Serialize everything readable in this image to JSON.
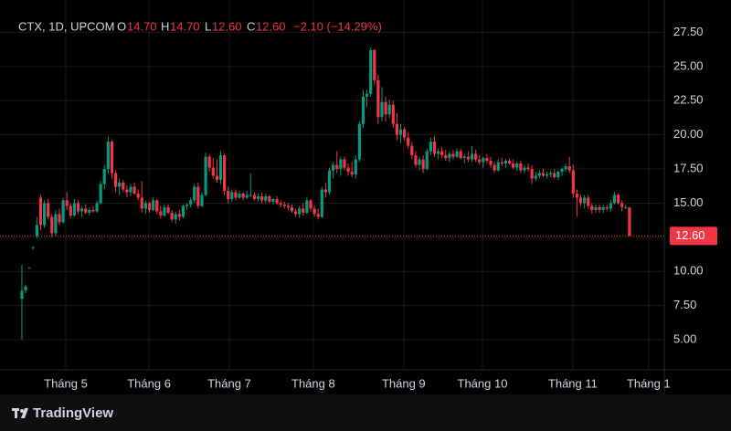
{
  "header": {
    "symbol": "CTX, 1D, UPCOM",
    "open_label": "O",
    "open": "14.70",
    "high_label": "H",
    "high": "14.70",
    "low_label": "L",
    "low": "12.60",
    "close_label": "C",
    "close": "12.60",
    "change": "−2.10 (−14.29%)"
  },
  "footer": {
    "brand": "TradingView"
  },
  "chart_data": {
    "type": "candlestick",
    "up_color": "#089981",
    "down_color": "#f23645",
    "grid": true,
    "ylim": [
      2.8,
      29.2
    ],
    "yticks": [
      {
        "value": 5,
        "label": "5.00"
      },
      {
        "value": 7.5,
        "label": "7.50"
      },
      {
        "value": 10,
        "label": "10.00"
      },
      {
        "value": 12.5,
        "label": "12.50"
      },
      {
        "value": 15,
        "label": "15.00"
      },
      {
        "value": 17.5,
        "label": "17.50"
      },
      {
        "value": 20,
        "label": "20.00"
      },
      {
        "value": 22.5,
        "label": "22.50"
      },
      {
        "value": 25,
        "label": "25.00"
      },
      {
        "value": 27.5,
        "label": "27.50"
      }
    ],
    "xlim": [
      -3.4,
      170.8
    ],
    "xticks": [
      {
        "value": 11.7,
        "label": "Tháng 5"
      },
      {
        "value": 33.9,
        "label": "Tháng 6"
      },
      {
        "value": 55.3,
        "label": "Tháng 7"
      },
      {
        "value": 77.7,
        "label": "Tháng 8"
      },
      {
        "value": 101.8,
        "label": "Tháng 9"
      },
      {
        "value": 122.8,
        "label": "Tháng 10"
      },
      {
        "value": 146.9,
        "label": "Tháng 11"
      },
      {
        "value": 167.1,
        "label": "Tháng 1"
      }
    ],
    "last_price": {
      "value": 12.6,
      "label": "12.60"
    },
    "candles": [
      [
        8.0,
        10.5,
        5.0,
        8.6
      ],
      [
        8.6,
        9.0,
        8.4,
        8.9
      ],
      [
        10.3,
        10.3,
        10.3,
        10.3
      ],
      [
        11.8,
        11.8,
        11.6,
        11.8
      ],
      [
        12.6,
        14.0,
        12.4,
        13.4
      ],
      [
        15.4,
        15.6,
        13.0,
        13.4
      ],
      [
        13.4,
        15.2,
        13.2,
        15.0
      ],
      [
        15.0,
        15.3,
        13.8,
        14.0
      ],
      [
        14.0,
        14.2,
        12.5,
        12.8
      ],
      [
        12.8,
        14.5,
        12.6,
        14.2
      ],
      [
        14.2,
        14.6,
        13.4,
        13.6
      ],
      [
        13.6,
        15.4,
        13.5,
        15.2
      ],
      [
        15.2,
        15.8,
        14.5,
        14.8
      ],
      [
        14.8,
        15.0,
        13.9,
        14.1
      ],
      [
        14.1,
        15.3,
        14.0,
        15.0
      ],
      [
        15.0,
        15.2,
        14.2,
        14.4
      ],
      [
        14.4,
        14.8,
        14.0,
        14.6
      ],
      [
        14.6,
        14.9,
        14.2,
        14.3
      ],
      [
        14.3,
        14.7,
        14.1,
        14.5
      ],
      [
        14.5,
        14.8,
        14.3,
        14.4
      ],
      [
        14.4,
        15.2,
        14.3,
        15.0
      ],
      [
        15.0,
        16.6,
        14.9,
        16.4
      ],
      [
        16.4,
        17.8,
        16.0,
        17.5
      ],
      [
        17.5,
        19.9,
        17.2,
        19.5
      ],
      [
        19.5,
        19.6,
        16.8,
        17.2
      ],
      [
        17.2,
        17.4,
        15.8,
        16.2
      ],
      [
        16.2,
        16.8,
        15.6,
        16.5
      ],
      [
        16.5,
        16.7,
        15.8,
        16.0
      ],
      [
        16.0,
        16.3,
        15.4,
        15.8
      ],
      [
        15.8,
        16.4,
        15.5,
        16.2
      ],
      [
        16.2,
        16.5,
        15.6,
        15.7
      ],
      [
        15.7,
        16.0,
        15.2,
        15.4
      ],
      [
        15.4,
        16.6,
        14.3,
        14.6
      ],
      [
        14.6,
        15.2,
        14.2,
        15.0
      ],
      [
        15.0,
        15.1,
        14.3,
        14.5
      ],
      [
        14.5,
        15.4,
        14.4,
        15.2
      ],
      [
        15.2,
        15.3,
        14.2,
        14.4
      ],
      [
        14.4,
        14.8,
        13.9,
        14.1
      ],
      [
        14.1,
        14.9,
        14.0,
        14.7
      ],
      [
        14.7,
        14.9,
        14.2,
        14.3
      ],
      [
        14.3,
        14.5,
        13.6,
        13.8
      ],
      [
        13.8,
        14.4,
        13.5,
        14.2
      ],
      [
        14.2,
        14.5,
        13.7,
        14.0
      ],
      [
        14.0,
        14.9,
        13.9,
        14.8
      ],
      [
        14.8,
        15.0,
        14.5,
        14.9
      ],
      [
        14.9,
        15.4,
        14.7,
        15.2
      ],
      [
        15.2,
        16.4,
        15.0,
        16.2
      ],
      [
        16.2,
        16.5,
        14.6,
        14.8
      ],
      [
        14.8,
        15.8,
        14.7,
        15.6
      ],
      [
        15.6,
        18.7,
        15.5,
        18.4
      ],
      [
        18.4,
        18.6,
        17.3,
        17.6
      ],
      [
        17.6,
        18.3,
        16.8,
        17.0
      ],
      [
        17.0,
        18.2,
        16.5,
        16.7
      ],
      [
        16.7,
        18.8,
        16.4,
        18.5
      ],
      [
        18.5,
        18.6,
        15.6,
        15.9
      ],
      [
        15.9,
        16.2,
        15.0,
        15.3
      ],
      [
        15.3,
        16.0,
        15.1,
        15.8
      ],
      [
        15.8,
        16.0,
        15.2,
        15.4
      ],
      [
        15.4,
        15.9,
        15.3,
        15.7
      ],
      [
        15.7,
        15.8,
        15.2,
        15.4
      ],
      [
        15.4,
        15.9,
        15.3,
        15.6
      ],
      [
        15.6,
        17.2,
        15.4,
        15.6
      ],
      [
        15.6,
        15.8,
        15.2,
        15.3
      ],
      [
        15.3,
        15.7,
        15.1,
        15.5
      ],
      [
        15.5,
        15.8,
        15.0,
        15.2
      ],
      [
        15.2,
        15.7,
        15.0,
        15.5
      ],
      [
        15.5,
        15.6,
        15.0,
        15.1
      ],
      [
        15.1,
        15.4,
        14.9,
        15.3
      ],
      [
        15.3,
        15.5,
        14.9,
        15.0
      ],
      [
        15.0,
        15.2,
        14.7,
        14.9
      ],
      [
        14.9,
        15.1,
        14.6,
        14.8
      ],
      [
        14.8,
        15.0,
        14.5,
        14.7
      ],
      [
        14.7,
        14.9,
        14.3,
        14.4
      ],
      [
        14.4,
        14.6,
        14.0,
        14.2
      ],
      [
        14.2,
        14.8,
        13.9,
        14.6
      ],
      [
        14.6,
        15.0,
        14.1,
        14.3
      ],
      [
        14.3,
        15.4,
        14.2,
        15.2
      ],
      [
        15.2,
        15.3,
        14.4,
        14.6
      ],
      [
        14.6,
        14.8,
        14.0,
        14.2
      ],
      [
        14.2,
        14.6,
        13.8,
        14.0
      ],
      [
        14.0,
        16.2,
        13.9,
        16.0
      ],
      [
        16.0,
        16.5,
        15.4,
        15.8
      ],
      [
        15.8,
        17.6,
        15.6,
        17.4
      ],
      [
        17.4,
        18.0,
        16.8,
        17.8
      ],
      [
        17.8,
        18.8,
        17.2,
        17.5
      ],
      [
        17.5,
        18.4,
        17.0,
        18.2
      ],
      [
        18.2,
        18.4,
        17.4,
        17.6
      ],
      [
        17.6,
        17.9,
        17.0,
        17.3
      ],
      [
        17.3,
        18.0,
        16.9,
        17.1
      ],
      [
        17.1,
        18.5,
        16.8,
        18.2
      ],
      [
        18.2,
        21.0,
        18.0,
        20.8
      ],
      [
        20.8,
        23.3,
        20.5,
        22.8
      ],
      [
        22.8,
        23.3,
        22.0,
        23.0
      ],
      [
        23.0,
        26.4,
        22.8,
        26.2
      ],
      [
        26.2,
        26.3,
        23.6,
        24.0
      ],
      [
        24.0,
        24.4,
        20.8,
        21.3
      ],
      [
        21.3,
        23.5,
        21.0,
        22.4
      ],
      [
        22.4,
        22.8,
        21.0,
        21.5
      ],
      [
        21.5,
        22.6,
        21.2,
        22.2
      ],
      [
        22.2,
        22.5,
        20.5,
        20.8
      ],
      [
        20.8,
        21.6,
        19.6,
        20.0
      ],
      [
        20.0,
        20.8,
        19.4,
        20.4
      ],
      [
        20.4,
        20.6,
        19.6,
        19.8
      ],
      [
        19.8,
        20.2,
        19.0,
        19.2
      ],
      [
        19.2,
        19.5,
        18.2,
        18.5
      ],
      [
        18.5,
        18.8,
        17.6,
        17.8
      ],
      [
        17.8,
        18.4,
        17.4,
        18.2
      ],
      [
        18.2,
        18.5,
        17.2,
        17.5
      ],
      [
        17.5,
        19.0,
        17.4,
        18.8
      ],
      [
        18.8,
        19.8,
        18.5,
        19.5
      ],
      [
        19.5,
        19.9,
        18.4,
        18.6
      ],
      [
        18.6,
        19.0,
        18.2,
        18.8
      ],
      [
        18.8,
        19.1,
        18.3,
        18.5
      ],
      [
        18.5,
        18.9,
        18.1,
        18.3
      ],
      [
        18.3,
        18.8,
        18.0,
        18.6
      ],
      [
        18.6,
        18.9,
        18.2,
        18.4
      ],
      [
        18.4,
        19.0,
        18.3,
        18.8
      ],
      [
        18.8,
        19.0,
        18.2,
        18.3
      ],
      [
        18.3,
        18.6,
        17.9,
        18.4
      ],
      [
        18.4,
        18.8,
        18.0,
        18.2
      ],
      [
        18.2,
        19.2,
        18.0,
        18.6
      ],
      [
        18.6,
        18.9,
        18.0,
        18.2
      ],
      [
        18.2,
        18.5,
        17.8,
        18.0
      ],
      [
        18.0,
        18.4,
        17.6,
        18.3
      ],
      [
        18.3,
        18.6,
        17.9,
        18.1
      ],
      [
        18.1,
        18.4,
        17.6,
        17.8
      ],
      [
        17.8,
        18.0,
        17.2,
        17.4
      ],
      [
        17.4,
        18.2,
        17.3,
        18.0
      ],
      [
        18.0,
        18.3,
        17.7,
        17.9
      ],
      [
        17.9,
        18.2,
        17.6,
        18.1
      ],
      [
        18.1,
        18.3,
        17.8,
        17.9
      ],
      [
        17.9,
        18.2,
        17.5,
        17.6
      ],
      [
        17.6,
        18.0,
        17.4,
        17.9
      ],
      [
        17.9,
        18.1,
        17.2,
        17.4
      ],
      [
        17.4,
        17.8,
        17.2,
        17.6
      ],
      [
        17.6,
        17.9,
        17.3,
        17.5
      ],
      [
        17.5,
        17.8,
        16.4,
        16.8
      ],
      [
        16.8,
        17.3,
        16.6,
        17.0
      ],
      [
        17.0,
        17.4,
        16.8,
        17.2
      ],
      [
        17.2,
        17.5,
        16.9,
        17.0
      ],
      [
        17.0,
        17.3,
        16.8,
        17.1
      ],
      [
        17.1,
        17.4,
        16.9,
        17.2
      ],
      [
        17.2,
        17.5,
        16.8,
        16.9
      ],
      [
        16.9,
        17.4,
        16.7,
        17.3
      ],
      [
        17.3,
        17.6,
        17.0,
        17.5
      ],
      [
        17.5,
        17.9,
        17.3,
        17.7
      ],
      [
        17.7,
        18.4,
        17.2,
        17.4
      ],
      [
        17.4,
        17.8,
        15.4,
        15.7
      ],
      [
        15.7,
        16.0,
        14.0,
        15.4
      ],
      [
        15.4,
        15.6,
        14.8,
        15.0
      ],
      [
        15.0,
        15.6,
        14.6,
        15.4
      ],
      [
        15.4,
        15.6,
        14.6,
        14.8
      ],
      [
        14.8,
        15.0,
        14.2,
        14.5
      ],
      [
        14.5,
        14.9,
        14.3,
        14.7
      ],
      [
        14.7,
        14.9,
        14.3,
        14.5
      ],
      [
        14.5,
        14.9,
        14.3,
        14.7
      ],
      [
        14.7,
        14.9,
        14.4,
        14.6
      ],
      [
        14.6,
        15.2,
        14.4,
        15.0
      ],
      [
        15.0,
        15.8,
        14.9,
        15.6
      ],
      [
        15.6,
        15.7,
        14.9,
        15.0
      ],
      [
        15.0,
        15.2,
        14.4,
        14.7
      ],
      [
        14.7,
        14.9,
        14.6,
        14.7
      ],
      [
        14.7,
        14.7,
        12.6,
        12.6
      ]
    ]
  }
}
